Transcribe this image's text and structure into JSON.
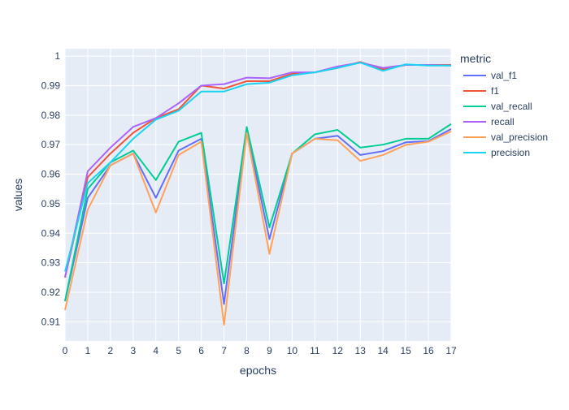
{
  "chart_data": {
    "type": "line",
    "xlabel": "epochs",
    "ylabel": "values",
    "legend_title": "metric",
    "legend_position": "right",
    "grid": true,
    "background": "#E5ECF6",
    "xlim": [
      0,
      17
    ],
    "ylim": [
      0.9035,
      1.0025
    ],
    "x": [
      0,
      1,
      2,
      3,
      4,
      5,
      6,
      7,
      8,
      9,
      10,
      11,
      12,
      13,
      14,
      15,
      16,
      17
    ],
    "x_ticks": [
      0,
      1,
      2,
      3,
      4,
      5,
      6,
      7,
      8,
      9,
      10,
      11,
      12,
      13,
      14,
      15,
      16,
      17
    ],
    "y_ticks": [
      0.91,
      0.92,
      0.93,
      0.94,
      0.95,
      0.96,
      0.97,
      0.98,
      0.99,
      1
    ],
    "y_tick_labels": [
      "0.91",
      "0.92",
      "0.93",
      "0.94",
      "0.95",
      "0.96",
      "0.97",
      "0.98",
      "0.99",
      "1"
    ],
    "series": [
      {
        "name": "val_f1",
        "color": "#636EFA",
        "values": [
          0.917,
          0.952,
          0.963,
          0.967,
          0.952,
          0.968,
          0.972,
          0.916,
          0.975,
          0.938,
          0.967,
          0.972,
          0.973,
          0.9665,
          0.9678,
          0.9708,
          0.9712,
          0.9753
        ]
      },
      {
        "name": "f1",
        "color": "#EF553B",
        "values": [
          0.925,
          0.959,
          0.967,
          0.974,
          0.979,
          0.982,
          0.99,
          0.989,
          0.9915,
          0.9915,
          0.994,
          0.9945,
          0.996,
          0.998,
          0.9955,
          0.997,
          0.997,
          0.997
        ]
      },
      {
        "name": "val_recall",
        "color": "#00CC96",
        "values": [
          0.917,
          0.955,
          0.964,
          0.968,
          0.958,
          0.971,
          0.974,
          0.923,
          0.976,
          0.942,
          0.967,
          0.9735,
          0.975,
          0.969,
          0.97,
          0.972,
          0.972,
          0.977
        ]
      },
      {
        "name": "recall",
        "color": "#AB63FA",
        "values": [
          0.925,
          0.961,
          0.969,
          0.976,
          0.979,
          0.984,
          0.99,
          0.9905,
          0.9927,
          0.9925,
          0.9945,
          0.9945,
          0.9965,
          0.9978,
          0.996,
          0.997,
          0.997,
          0.9968
        ]
      },
      {
        "name": "val_precision",
        "color": "#FFA15A",
        "values": [
          0.914,
          0.948,
          0.963,
          0.967,
          0.947,
          0.9665,
          0.971,
          0.909,
          0.974,
          0.933,
          0.967,
          0.972,
          0.9715,
          0.9645,
          0.9665,
          0.9699,
          0.971,
          0.9745
        ]
      },
      {
        "name": "precision",
        "color": "#19D3F3",
        "values": [
          0.927,
          0.957,
          0.964,
          0.972,
          0.9785,
          0.9815,
          0.988,
          0.988,
          0.9905,
          0.991,
          0.9935,
          0.9945,
          0.996,
          0.9978,
          0.995,
          0.9972,
          0.9968,
          0.9968
        ]
      }
    ]
  }
}
